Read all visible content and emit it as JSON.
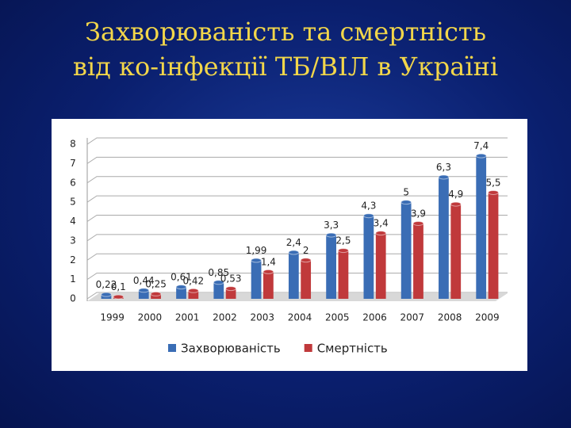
{
  "slide": {
    "title": [
      "Захворюваність та смертність",
      "від ко-інфекції ТБ/ВІЛ в Україні"
    ]
  },
  "chart_data": {
    "type": "bar",
    "categories": [
      "1999",
      "2000",
      "2001",
      "2002",
      "2003",
      "2004",
      "2005",
      "2006",
      "2007",
      "2008",
      "2009"
    ],
    "series": [
      {
        "name": "Захворюваність",
        "color": "#3a6db5",
        "values": [
          0.22,
          0.44,
          0.61,
          0.85,
          1.99,
          2.4,
          3.3,
          4.3,
          5,
          6.3,
          7.4
        ],
        "value_labels": [
          "0,22",
          "0,44",
          "0,61",
          "0,85",
          "1,99",
          "2,4",
          "3,3",
          "4,3",
          "5",
          "6,3",
          "7,4"
        ]
      },
      {
        "name": "Смертність",
        "color": "#c0393b",
        "values": [
          0.1,
          0.25,
          0.42,
          0.53,
          1.4,
          2,
          2.5,
          3.4,
          3.9,
          4.9,
          5.5
        ],
        "value_labels": [
          "0,1",
          "0,25",
          "0,42",
          "0,53",
          "1,4",
          "2",
          "2,5",
          "3,4",
          "3,9",
          "4,9",
          "5,5"
        ]
      }
    ],
    "ylim": [
      0,
      8
    ],
    "yticks": [
      0,
      1,
      2,
      3,
      4,
      5,
      6,
      7,
      8
    ],
    "grid": true,
    "legend": "bottom"
  }
}
